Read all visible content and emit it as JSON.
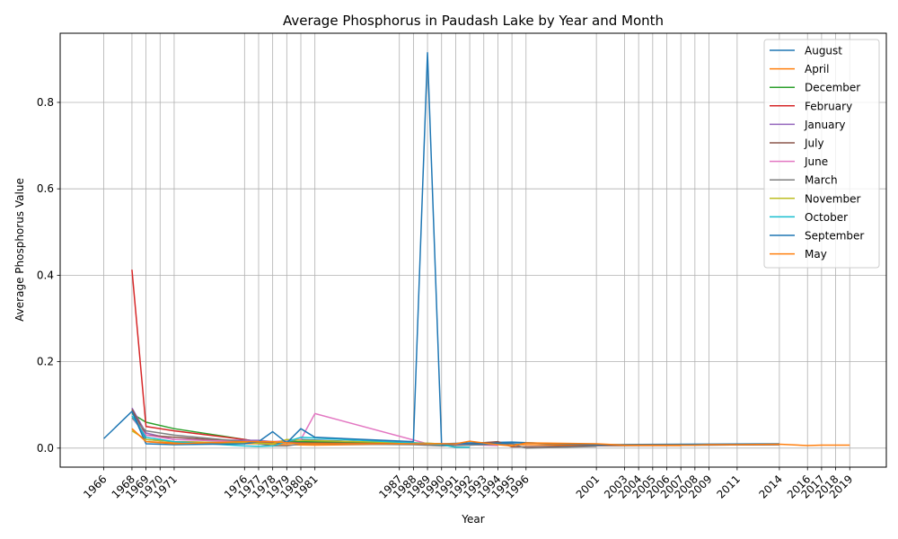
{
  "chart_data": {
    "type": "line",
    "title": "Average Phosphorus in Paudash Lake by Year and Month",
    "xlabel": "Year",
    "ylabel": "Average Phosphorus Value",
    "xlim": [
      1962.9,
      2021.6
    ],
    "ylim": [
      -0.044,
      0.96
    ],
    "yticks": [
      0.0,
      0.2,
      0.4,
      0.6,
      0.8
    ],
    "ytick_labels": [
      "0.0",
      "0.2",
      "0.4",
      "0.6",
      "0.8"
    ],
    "grid": true,
    "legend_position": "top-right",
    "year_ticks": [
      1966,
      1968,
      1969,
      1970,
      1971,
      1976,
      1977,
      1978,
      1979,
      1980,
      1981,
      1987,
      1988,
      1989,
      1990,
      1991,
      1992,
      1993,
      1994,
      1995,
      1996,
      2001,
      2003,
      2004,
      2005,
      2006,
      2007,
      2008,
      2009,
      2011,
      2014,
      2016,
      2017,
      2018,
      2019
    ],
    "series": [
      {
        "name": "August",
        "color": "#1f77b4",
        "x": [
          1966,
          1968,
          1969,
          1971,
          1976,
          1978,
          1980,
          1988,
          1990,
          1992,
          1995,
          2001,
          2014
        ],
        "y": [
          0.022,
          0.085,
          0.02,
          0.015,
          0.012,
          0.01,
          0.02,
          0.01,
          0.01,
          0.012,
          0.014,
          0.006,
          0.008
        ]
      },
      {
        "name": "April",
        "color": "#ff7f0e",
        "x": [
          1968,
          1969,
          1971,
          1977,
          1979,
          1981,
          1989,
          1991,
          1993,
          1996,
          2003,
          2007
        ],
        "y": [
          0.045,
          0.015,
          0.012,
          0.01,
          0.008,
          0.007,
          0.01,
          0.008,
          0.01,
          0.008,
          0.006,
          0.006
        ]
      },
      {
        "name": "December",
        "color": "#2ca02c",
        "x": [
          1968,
          1969,
          1971,
          1976,
          1977,
          1980,
          1988,
          1990
        ],
        "y": [
          0.08,
          0.06,
          0.045,
          0.02,
          0.015,
          0.015,
          0.012,
          0.01
        ]
      },
      {
        "name": "February",
        "color": "#d62728",
        "x": [
          1968,
          1969,
          1971,
          1976,
          1977,
          1978
        ],
        "y": [
          0.413,
          0.05,
          0.04,
          0.02,
          0.015,
          0.012
        ]
      },
      {
        "name": "January",
        "color": "#9467bd",
        "x": [
          1968,
          1969,
          1971,
          1976,
          1977,
          1978,
          1980
        ],
        "y": [
          0.093,
          0.035,
          0.02,
          0.018,
          0.018,
          0.015,
          0.012
        ]
      },
      {
        "name": "July",
        "color": "#8c564b",
        "x": [
          1968,
          1969,
          1971,
          1976,
          1978,
          1980,
          1988,
          1990,
          1992,
          1994,
          1995,
          1996,
          2001,
          2014
        ],
        "y": [
          0.09,
          0.03,
          0.025,
          0.015,
          0.012,
          0.012,
          0.01,
          0.008,
          0.01,
          0.015,
          0.003,
          0.003,
          0.006,
          0.008
        ]
      },
      {
        "name": "June",
        "color": "#e377c2",
        "x": [
          1968,
          1969,
          1971,
          1976,
          1978,
          1980,
          1981,
          1989,
          1990,
          1992,
          1994
        ],
        "y": [
          0.07,
          0.03,
          0.02,
          0.015,
          0.015,
          0.02,
          0.08,
          0.01,
          0.01,
          0.008,
          0.006
        ]
      },
      {
        "name": "March",
        "color": "#7f7f7f",
        "x": [
          1968,
          1969,
          1971,
          1976,
          1978,
          1979,
          1980,
          1988,
          1990,
          1993,
          1995,
          1996,
          2001
        ],
        "y": [
          0.07,
          0.04,
          0.03,
          0.015,
          0.005,
          0.005,
          0.01,
          0.008,
          0.005,
          0.008,
          0.01,
          0.0,
          0.004
        ]
      },
      {
        "name": "November",
        "color": "#bcbd22",
        "x": [
          1968,
          1969,
          1971,
          1976,
          1978,
          1979,
          1980,
          1988,
          1990
        ],
        "y": [
          0.04,
          0.02,
          0.015,
          0.012,
          0.01,
          0.02,
          0.018,
          0.012,
          0.01
        ]
      },
      {
        "name": "October",
        "color": "#17becf",
        "x": [
          1968,
          1969,
          1971,
          1976,
          1977,
          1978,
          1980,
          1988,
          1990,
          1991,
          1992
        ],
        "y": [
          0.075,
          0.025,
          0.015,
          0.005,
          0.004,
          0.005,
          0.025,
          0.012,
          0.008,
          0.002,
          0.002
        ]
      },
      {
        "name": "September",
        "color": "#1f77b4",
        "x": [
          1968,
          1969,
          1971,
          1976,
          1977,
          1978,
          1979,
          1980,
          1981,
          1988,
          1989,
          1990,
          1991,
          1993,
          1995,
          1996,
          2001,
          2014
        ],
        "y": [
          0.085,
          0.01,
          0.008,
          0.01,
          0.015,
          0.038,
          0.012,
          0.045,
          0.025,
          0.015,
          0.915,
          0.008,
          0.01,
          0.01,
          0.012,
          0.012,
          0.008,
          0.01
        ]
      },
      {
        "name": "May",
        "color": "#ff7f0e",
        "x": [
          1968,
          1969,
          1971,
          1976,
          1978,
          1980,
          1988,
          1990,
          1991,
          1992,
          1993,
          1994,
          1995,
          1996,
          2001,
          2003,
          2004,
          2005,
          2006,
          2007,
          2008,
          2009,
          2011,
          2014,
          2016,
          2017,
          2018,
          2019
        ],
        "y": [
          0.045,
          0.015,
          0.01,
          0.015,
          0.015,
          0.01,
          0.01,
          0.01,
          0.01,
          0.016,
          0.012,
          0.008,
          0.005,
          0.012,
          0.01,
          0.007,
          0.007,
          0.007,
          0.007,
          0.007,
          0.007,
          0.008,
          0.008,
          0.009,
          0.006,
          0.007,
          0.007,
          0.007
        ]
      }
    ]
  }
}
